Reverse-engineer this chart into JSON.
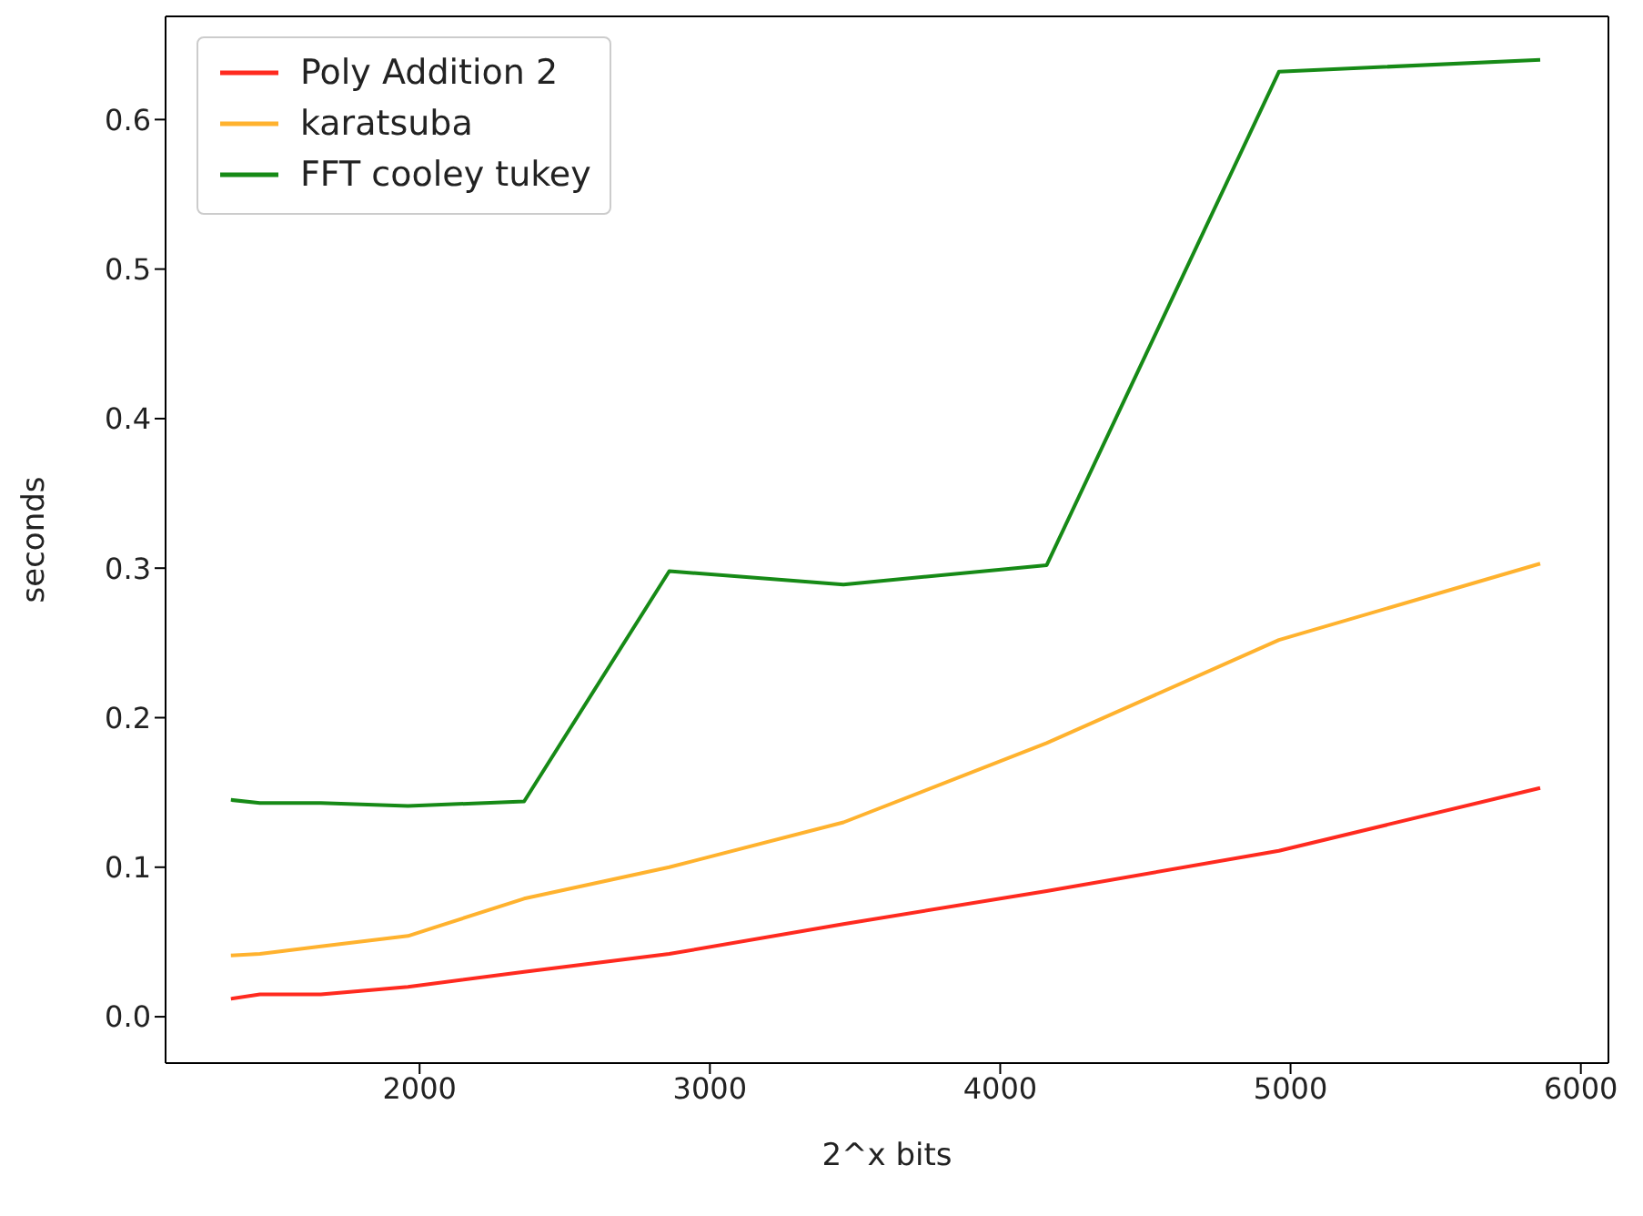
{
  "chart_data": {
    "type": "line",
    "xlabel": "2^x bits",
    "ylabel": "seconds",
    "x": [
      1350,
      1450,
      1660,
      1960,
      2360,
      2860,
      3460,
      4160,
      4960,
      5860
    ],
    "series": [
      {
        "name": "Poly Addition 2",
        "color": "#ff2a1f",
        "values": [
          0.012,
          0.015,
          0.015,
          0.02,
          0.03,
          0.042,
          0.062,
          0.084,
          0.111,
          0.153
        ]
      },
      {
        "name": "karatsuba",
        "color": "#ffb22e",
        "values": [
          0.041,
          0.042,
          0.047,
          0.054,
          0.079,
          0.1,
          0.13,
          0.183,
          0.252,
          0.303
        ]
      },
      {
        "name": "FFT cooley tukey",
        "color": "#168a16",
        "values": [
          0.145,
          0.143,
          0.143,
          0.141,
          0.144,
          0.298,
          0.289,
          0.302,
          0.632,
          0.64
        ]
      }
    ],
    "xlim": [
      1125,
      6095
    ],
    "xticks": [
      2000,
      3000,
      4000,
      5000,
      6000
    ],
    "ylim": [
      -0.031,
      0.669
    ],
    "yticks": [
      {
        "value": 0,
        "label": "0.0"
      },
      0.1,
      0.2,
      0.3,
      0.4,
      0.5,
      0.6
    ],
    "grid": false,
    "legend": "top left",
    "marker": "none",
    "line_style": "solid"
  }
}
